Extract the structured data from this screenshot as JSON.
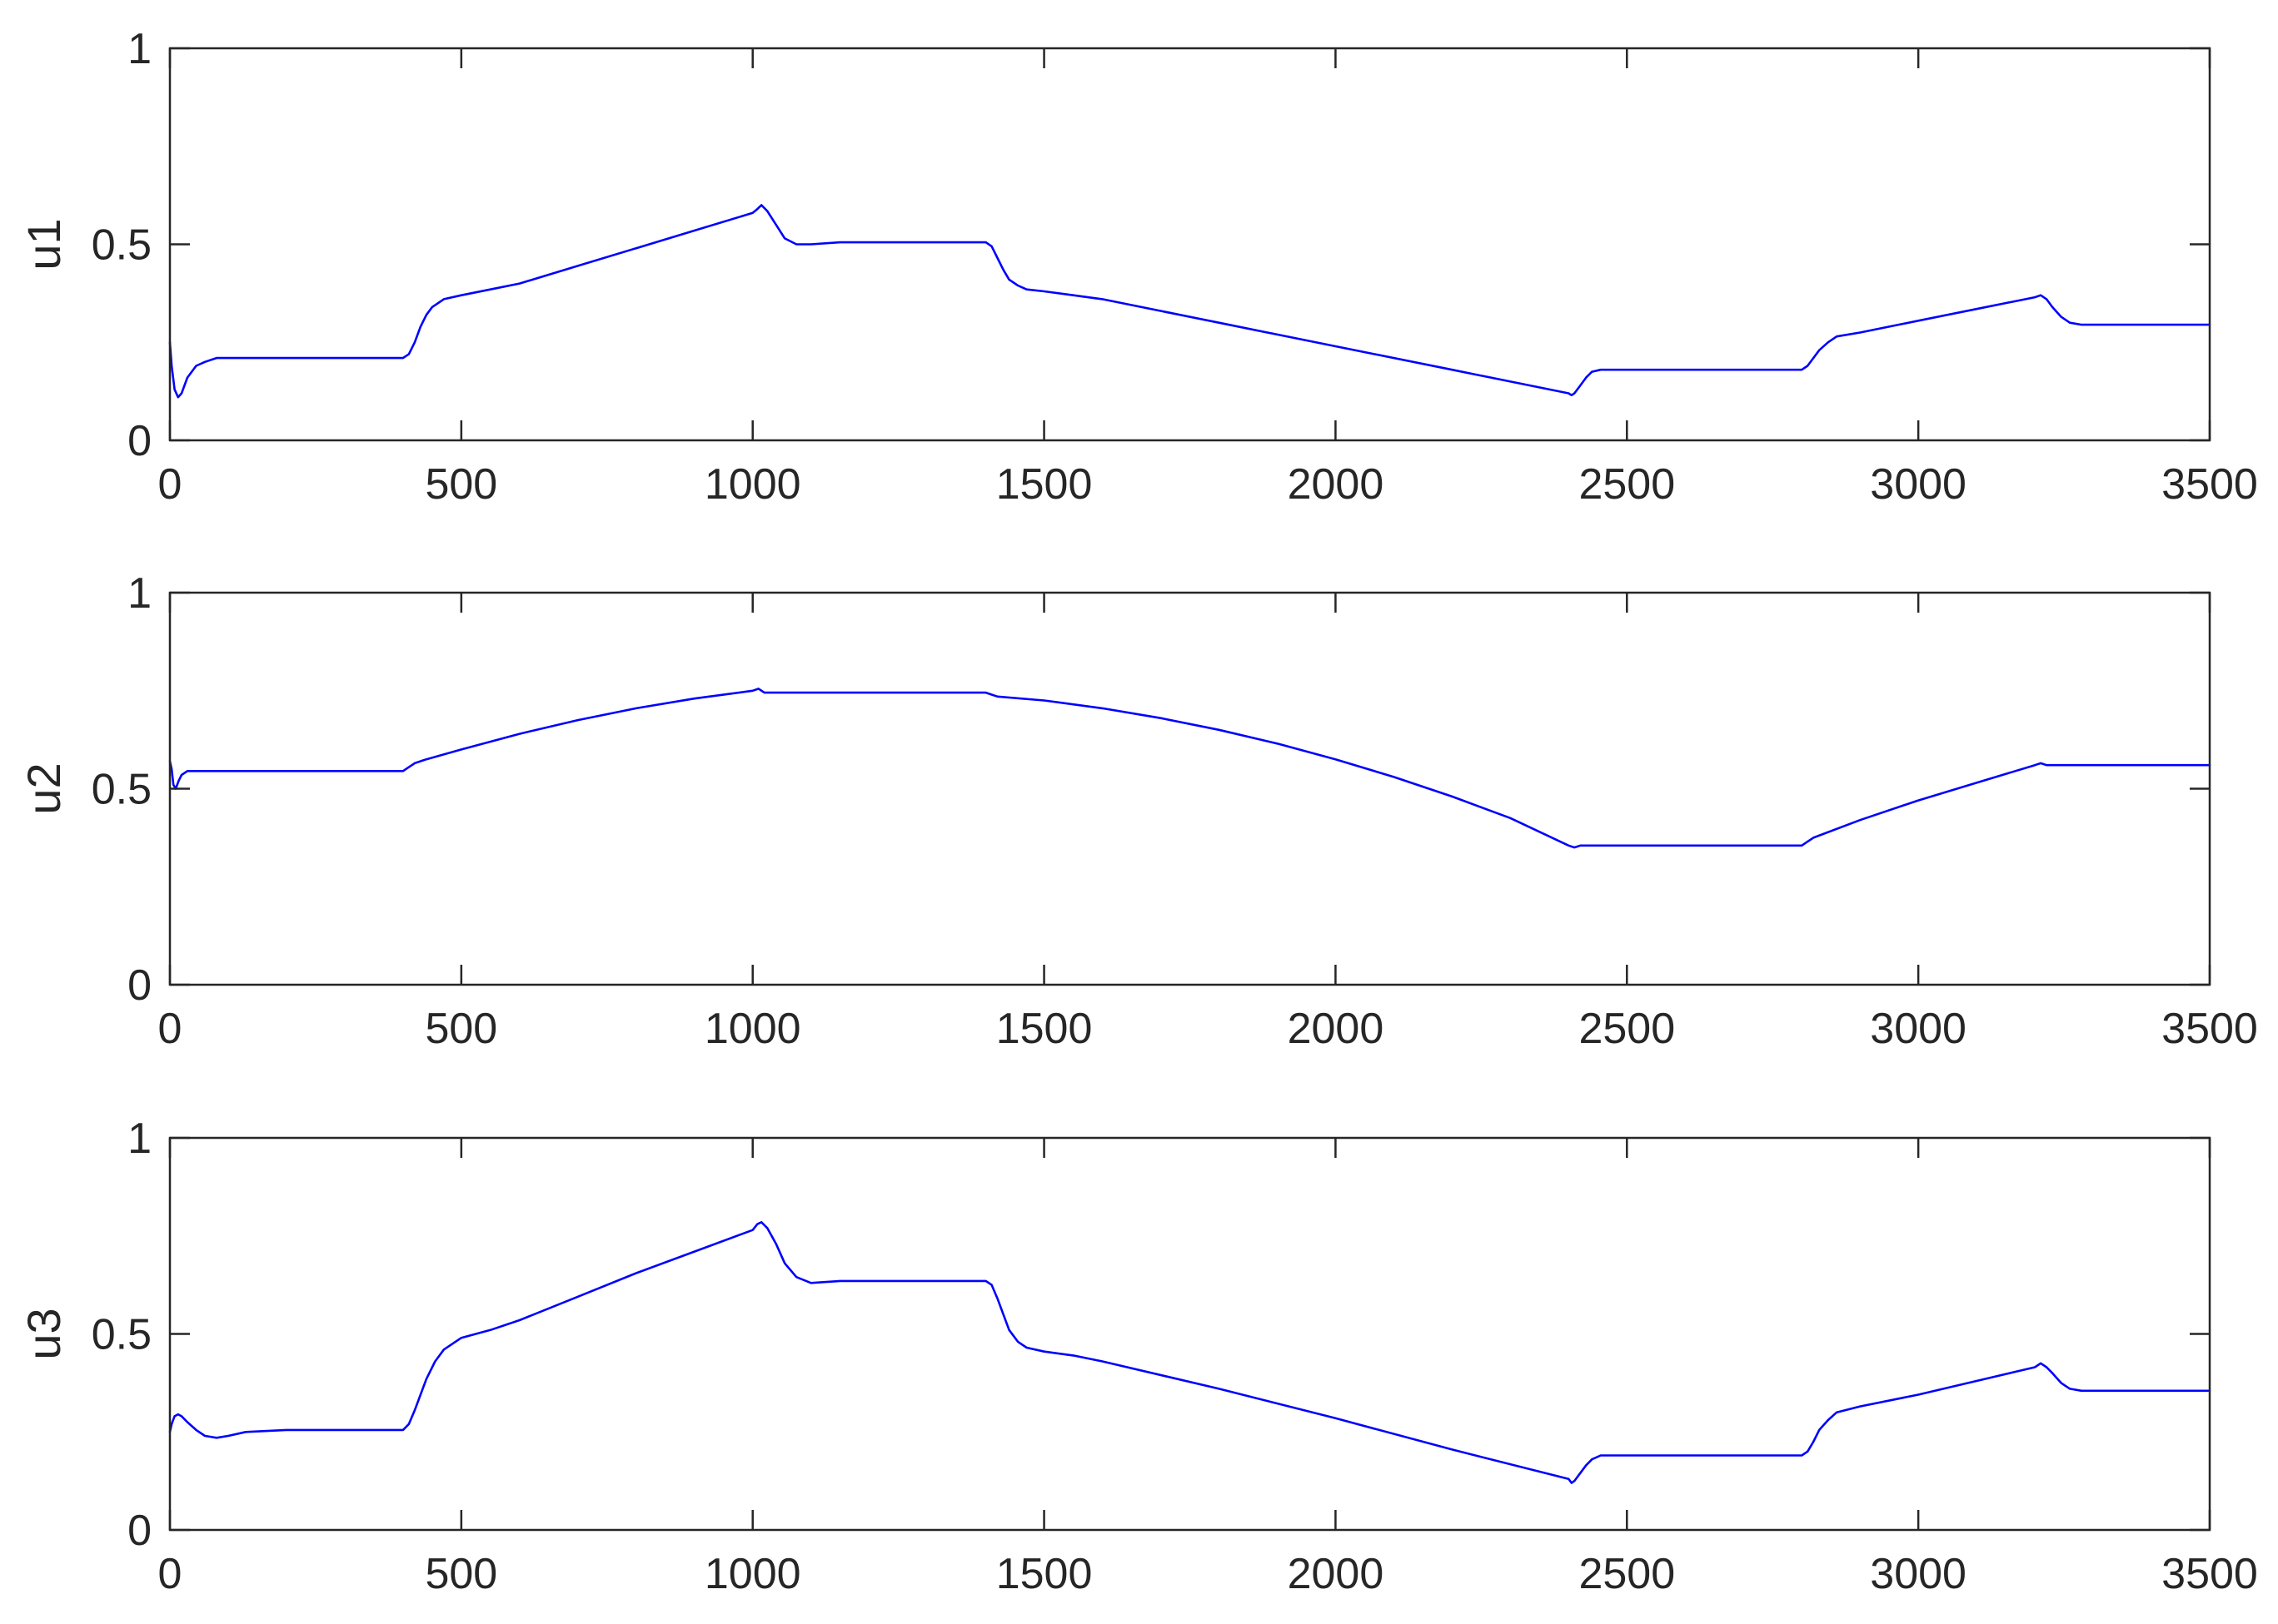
{
  "chart_data": [
    {
      "type": "line",
      "ylabel": "u1",
      "xlim": [
        0,
        3500
      ],
      "ylim": [
        0,
        1
      ],
      "xticks": [
        0,
        500,
        1000,
        1500,
        2000,
        2500,
        3000,
        3500
      ],
      "yticks": [
        0,
        0.5,
        1
      ],
      "xtick_labels": [
        "0",
        "500",
        "1000",
        "1500",
        "2000",
        "2500",
        "3000",
        "3500"
      ],
      "ytick_labels": [
        "0",
        "0.5",
        "1"
      ],
      "grid": false,
      "series": [
        {
          "color": "#0000ff",
          "x": [
            0,
            3,
            8,
            14,
            20,
            30,
            45,
            60,
            80,
            100,
            130,
            200,
            300,
            400,
            410,
            420,
            430,
            440,
            450,
            470,
            500,
            550,
            600,
            700,
            800,
            900,
            1000,
            1008,
            1015,
            1025,
            1040,
            1055,
            1075,
            1100,
            1150,
            1200,
            1300,
            1400,
            1410,
            1420,
            1430,
            1440,
            1455,
            1470,
            1500,
            1550,
            1600,
            1800,
            2000,
            2200,
            2400,
            2405,
            2410,
            2420,
            2430,
            2440,
            2455,
            2470,
            2500,
            2600,
            2700,
            2800,
            2810,
            2820,
            2830,
            2845,
            2860,
            2900,
            3000,
            3100,
            3200,
            3210,
            3220,
            3230,
            3245,
            3260,
            3280,
            3300,
            3400,
            3500
          ],
          "y": [
            0.25,
            0.19,
            0.13,
            0.11,
            0.12,
            0.16,
            0.19,
            0.2,
            0.21,
            0.21,
            0.21,
            0.21,
            0.21,
            0.21,
            0.22,
            0.25,
            0.29,
            0.32,
            0.34,
            0.36,
            0.37,
            0.385,
            0.4,
            0.445,
            0.49,
            0.535,
            0.58,
            0.59,
            0.6,
            0.585,
            0.55,
            0.515,
            0.5,
            0.5,
            0.505,
            0.505,
            0.505,
            0.505,
            0.495,
            0.465,
            0.435,
            0.41,
            0.395,
            0.385,
            0.38,
            0.37,
            0.36,
            0.3,
            0.24,
            0.18,
            0.12,
            0.115,
            0.12,
            0.14,
            0.16,
            0.175,
            0.18,
            0.18,
            0.18,
            0.18,
            0.18,
            0.18,
            0.19,
            0.21,
            0.23,
            0.25,
            0.265,
            0.275,
            0.305,
            0.335,
            0.365,
            0.37,
            0.36,
            0.34,
            0.315,
            0.3,
            0.295,
            0.295,
            0.295,
            0.295
          ]
        }
      ]
    },
    {
      "type": "line",
      "ylabel": "u2",
      "xlim": [
        0,
        3500
      ],
      "ylim": [
        0,
        1
      ],
      "xticks": [
        0,
        500,
        1000,
        1500,
        2000,
        2500,
        3000,
        3500
      ],
      "yticks": [
        0,
        0.5,
        1
      ],
      "xtick_labels": [
        "0",
        "500",
        "1000",
        "1500",
        "2000",
        "2500",
        "3000",
        "3500"
      ],
      "ytick_labels": [
        "0",
        "0.5",
        "1"
      ],
      "grid": false,
      "series": [
        {
          "color": "#0000ff",
          "x": [
            0,
            3,
            6,
            10,
            15,
            20,
            30,
            50,
            100,
            200,
            300,
            400,
            410,
            420,
            440,
            500,
            600,
            700,
            800,
            900,
            1000,
            1010,
            1020,
            1100,
            1200,
            1300,
            1400,
            1410,
            1420,
            1500,
            1600,
            1700,
            1800,
            1900,
            2000,
            2100,
            2200,
            2300,
            2400,
            2410,
            2420,
            2500,
            2600,
            2700,
            2800,
            2810,
            2820,
            2900,
            3000,
            3100,
            3200,
            3210,
            3220,
            3300,
            3400,
            3500
          ],
          "y": [
            0.57,
            0.55,
            0.51,
            0.5,
            0.52,
            0.535,
            0.545,
            0.545,
            0.545,
            0.545,
            0.545,
            0.545,
            0.555,
            0.565,
            0.575,
            0.6,
            0.64,
            0.675,
            0.705,
            0.73,
            0.75,
            0.755,
            0.745,
            0.745,
            0.745,
            0.745,
            0.745,
            0.74,
            0.735,
            0.725,
            0.705,
            0.68,
            0.65,
            0.615,
            0.575,
            0.53,
            0.48,
            0.425,
            0.355,
            0.35,
            0.355,
            0.355,
            0.355,
            0.355,
            0.355,
            0.365,
            0.375,
            0.42,
            0.47,
            0.515,
            0.56,
            0.565,
            0.56,
            0.56,
            0.56,
            0.56
          ]
        }
      ]
    },
    {
      "type": "line",
      "ylabel": "u3",
      "xlim": [
        0,
        3500
      ],
      "ylim": [
        0,
        1
      ],
      "xticks": [
        0,
        500,
        1000,
        1500,
        2000,
        2500,
        3000,
        3500
      ],
      "yticks": [
        0,
        0.5,
        1
      ],
      "xtick_labels": [
        "0",
        "500",
        "1000",
        "1500",
        "2000",
        "2500",
        "3000",
        "3500"
      ],
      "ytick_labels": [
        "0",
        "0.5",
        "1"
      ],
      "grid": false,
      "series": [
        {
          "color": "#0000ff",
          "x": [
            0,
            3,
            8,
            14,
            20,
            30,
            45,
            60,
            80,
            100,
            130,
            200,
            300,
            400,
            410,
            420,
            430,
            440,
            455,
            470,
            500,
            550,
            600,
            700,
            800,
            900,
            1000,
            1008,
            1015,
            1025,
            1040,
            1055,
            1075,
            1100,
            1150,
            1200,
            1300,
            1400,
            1410,
            1420,
            1430,
            1440,
            1455,
            1470,
            1500,
            1550,
            1600,
            1800,
            2000,
            2200,
            2400,
            2405,
            2410,
            2420,
            2430,
            2440,
            2455,
            2470,
            2500,
            2600,
            2700,
            2800,
            2810,
            2820,
            2830,
            2845,
            2860,
            2900,
            3000,
            3100,
            3200,
            3210,
            3220,
            3230,
            3245,
            3260,
            3280,
            3300,
            3400,
            3500
          ],
          "y": [
            0.25,
            0.27,
            0.29,
            0.295,
            0.29,
            0.275,
            0.255,
            0.24,
            0.235,
            0.24,
            0.25,
            0.255,
            0.255,
            0.255,
            0.27,
            0.305,
            0.345,
            0.385,
            0.43,
            0.46,
            0.49,
            0.51,
            0.535,
            0.595,
            0.655,
            0.71,
            0.765,
            0.78,
            0.785,
            0.77,
            0.73,
            0.68,
            0.645,
            0.63,
            0.635,
            0.635,
            0.635,
            0.635,
            0.625,
            0.59,
            0.55,
            0.51,
            0.48,
            0.465,
            0.455,
            0.445,
            0.43,
            0.36,
            0.285,
            0.205,
            0.13,
            0.12,
            0.125,
            0.145,
            0.165,
            0.18,
            0.19,
            0.19,
            0.19,
            0.19,
            0.19,
            0.19,
            0.2,
            0.225,
            0.255,
            0.28,
            0.3,
            0.315,
            0.345,
            0.38,
            0.415,
            0.425,
            0.415,
            0.4,
            0.375,
            0.36,
            0.355,
            0.355,
            0.355,
            0.355
          ]
        }
      ]
    }
  ]
}
